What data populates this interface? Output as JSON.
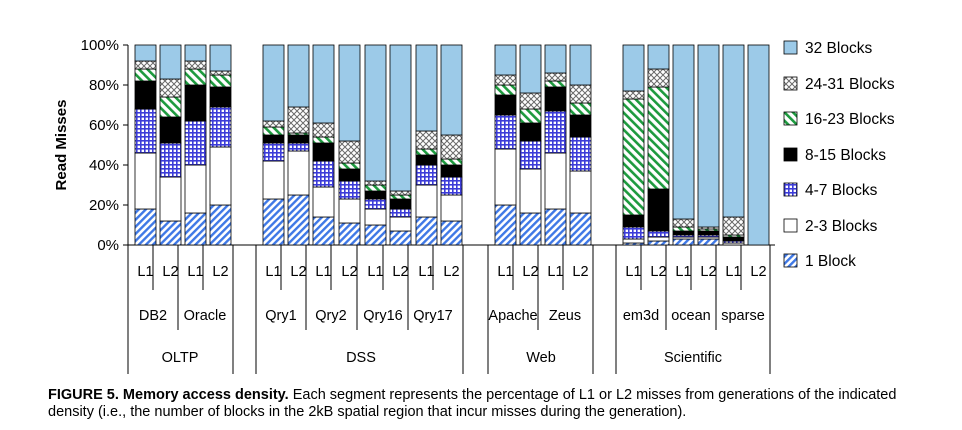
{
  "chart_data": {
    "type": "bar",
    "stacked": true,
    "ylabel": "Read Misses",
    "ylim": [
      0,
      100
    ],
    "yticks": [
      "0%",
      "20%",
      "40%",
      "60%",
      "80%",
      "100%"
    ],
    "grid": false,
    "legend_position": "right",
    "series": [
      {
        "name": "1 Block",
        "pattern": "diag",
        "color": "#3e78e6",
        "values": [
          18,
          12,
          16,
          20,
          23,
          25,
          14,
          11,
          10,
          7,
          14,
          12,
          20,
          16,
          18,
          16,
          1,
          2,
          3,
          3,
          0,
          0
        ]
      },
      {
        "name": "2-3 Blocks",
        "pattern": "white",
        "color": "#ffffff",
        "values": [
          28,
          22,
          24,
          29,
          19,
          22,
          15,
          12,
          8,
          7,
          16,
          13,
          28,
          22,
          28,
          21,
          2,
          2,
          1,
          1,
          1,
          0
        ]
      },
      {
        "name": "4-7 Blocks",
        "pattern": "grid",
        "color": "#3c3cd8",
        "values": [
          22,
          17,
          22,
          20,
          9,
          4,
          13,
          9,
          5,
          4,
          10,
          9,
          17,
          14,
          21,
          17,
          6,
          3,
          1,
          1,
          1,
          0
        ]
      },
      {
        "name": "8-15 Blocks",
        "pattern": "black",
        "color": "#000000",
        "values": [
          14,
          13,
          18,
          10,
          4,
          4,
          9,
          6,
          4,
          5,
          5,
          6,
          10,
          9,
          12,
          11,
          6,
          21,
          2,
          2,
          2,
          0
        ]
      },
      {
        "name": "16-23 Blocks",
        "pattern": "hatch",
        "color": "#1d9a3e",
        "values": [
          6,
          10,
          8,
          6,
          4,
          1,
          3,
          3,
          3,
          2,
          3,
          3,
          5,
          7,
          3,
          6,
          58,
          51,
          2,
          1,
          1,
          0
        ]
      },
      {
        "name": "24-31 Blocks",
        "pattern": "cross",
        "color": "#8c8c8c",
        "values": [
          4,
          9,
          4,
          2,
          3,
          13,
          7,
          11,
          2,
          2,
          9,
          12,
          5,
          8,
          4,
          9,
          4,
          9,
          4,
          1,
          9,
          0
        ]
      },
      {
        "name": "32 Blocks",
        "pattern": "solid",
        "color": "#9ccae8",
        "values": [
          8,
          17,
          8,
          13,
          38,
          31,
          39,
          48,
          68,
          73,
          43,
          45,
          15,
          24,
          14,
          20,
          23,
          12,
          87,
          91,
          86,
          100
        ]
      }
    ],
    "bars": [
      {
        "level": "L1",
        "benchmark": "DB2"
      },
      {
        "level": "L2",
        "benchmark": "DB2"
      },
      {
        "level": "L1",
        "benchmark": "Oracle"
      },
      {
        "level": "L2",
        "benchmark": "Oracle"
      },
      {
        "level": "L1",
        "benchmark": "Qry1"
      },
      {
        "level": "L2",
        "benchmark": "Qry1"
      },
      {
        "level": "L1",
        "benchmark": "Qry2"
      },
      {
        "level": "L2",
        "benchmark": "Qry2"
      },
      {
        "level": "L1",
        "benchmark": "Qry16"
      },
      {
        "level": "L2",
        "benchmark": "Qry16"
      },
      {
        "level": "L1",
        "benchmark": "Qry17"
      },
      {
        "level": "L2",
        "benchmark": "Qry17"
      },
      {
        "level": "L1",
        "benchmark": "Apache"
      },
      {
        "level": "L2",
        "benchmark": "Apache"
      },
      {
        "level": "L1",
        "benchmark": "Zeus"
      },
      {
        "level": "L2",
        "benchmark": "Zeus"
      },
      {
        "level": "L1",
        "benchmark": "em3d"
      },
      {
        "level": "L2",
        "benchmark": "em3d"
      },
      {
        "level": "L1",
        "benchmark": "ocean"
      },
      {
        "level": "L2",
        "benchmark": "ocean"
      },
      {
        "level": "L1",
        "benchmark": "sparse"
      },
      {
        "level": "L2",
        "benchmark": "sparse"
      }
    ],
    "benchmarks": [
      {
        "name": "DB2",
        "suite": "OLTP"
      },
      {
        "name": "Oracle",
        "suite": "OLTP"
      },
      {
        "name": "Qry1",
        "suite": "DSS"
      },
      {
        "name": "Qry2",
        "suite": "DSS"
      },
      {
        "name": "Qry16",
        "suite": "DSS"
      },
      {
        "name": "Qry17",
        "suite": "DSS"
      },
      {
        "name": "Apache",
        "suite": "Web"
      },
      {
        "name": "Zeus",
        "suite": "Web"
      },
      {
        "name": "em3d",
        "suite": "Scientific"
      },
      {
        "name": "ocean",
        "suite": "Scientific"
      },
      {
        "name": "sparse",
        "suite": "Scientific"
      }
    ],
    "suites": [
      "OLTP",
      "DSS",
      "Web",
      "Scientific"
    ]
  },
  "caption": {
    "label": "FIGURE 5. Memory access density.",
    "text": " Each segment represents the percentage of L1 or L2 misses from generations of the indicated density (i.e., the number of blocks in the 2kB spatial region that incur misses during the generation)."
  }
}
